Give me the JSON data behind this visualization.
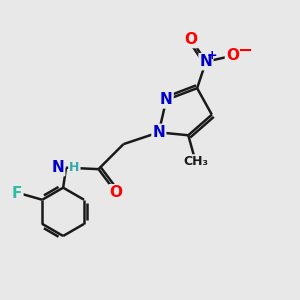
{
  "background_color": "#e8e8e8",
  "bond_color": "#1a1a1a",
  "bond_width": 1.8,
  "atom_colors": {
    "N": "#0000cc",
    "O": "#ff0000",
    "F": "#33bbaa",
    "H": "#33aaaa",
    "C": "#1a1a1a"
  },
  "font_size_atom": 11,
  "font_size_small": 9
}
